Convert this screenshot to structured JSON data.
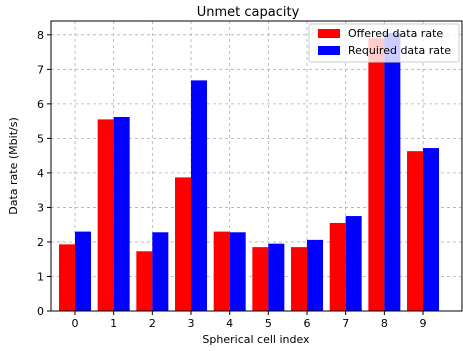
{
  "chart_data": {
    "type": "bar",
    "title": "Unmet capacity",
    "xlabel": "Spherical cell index",
    "ylabel": "Data rate (Mbit/s)",
    "categories": [
      "0",
      "1",
      "2",
      "3",
      "4",
      "5",
      "6",
      "7",
      "8",
      "9"
    ],
    "series": [
      {
        "name": "Offered data rate",
        "color": "#ff0000",
        "values": [
          1.93,
          5.55,
          1.73,
          3.87,
          2.3,
          1.85,
          1.85,
          2.55,
          7.9,
          4.63
        ]
      },
      {
        "name": "Required data rate",
        "color": "#0000ff",
        "values": [
          2.3,
          5.62,
          2.28,
          6.68,
          2.28,
          1.95,
          2.06,
          2.75,
          8.05,
          4.72
        ]
      }
    ],
    "ylim": [
      0,
      8.4
    ],
    "yticks": [
      0,
      1,
      2,
      3,
      4,
      5,
      6,
      7,
      8
    ],
    "grid": true,
    "legend_position": "top-right"
  }
}
